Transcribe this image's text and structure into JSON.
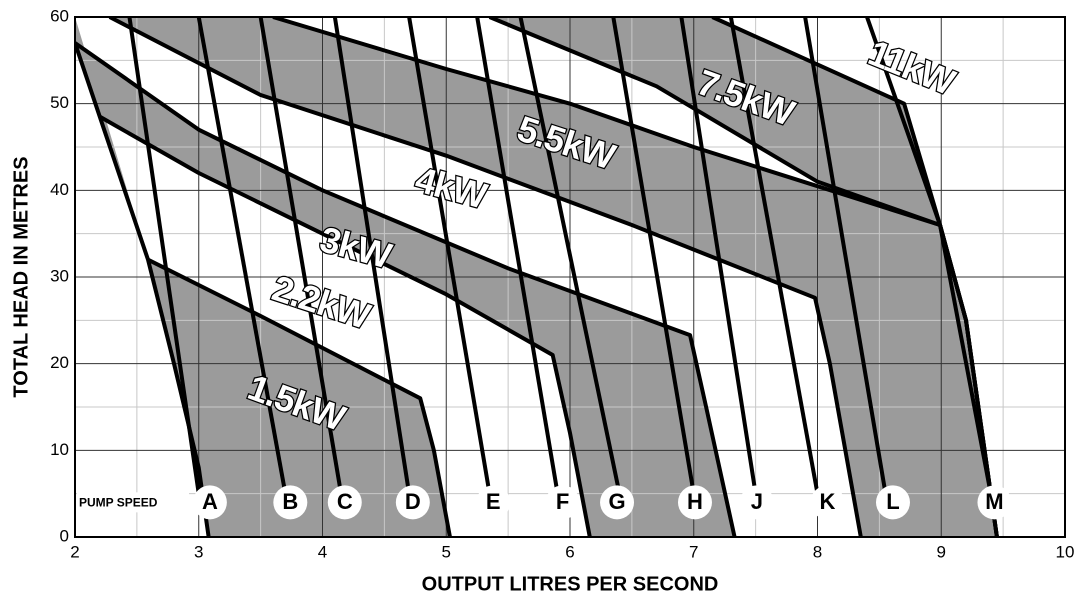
{
  "chart_data": {
    "type": "line",
    "xlabel": "OUTPUT LITRES PER SECOND",
    "ylabel": "TOTAL HEAD IN METRES",
    "annotation": "PUMP SPEED",
    "xlim": [
      2,
      10
    ],
    "ylim": [
      0,
      60
    ],
    "xticks": [
      2,
      3,
      4,
      5,
      6,
      7,
      8,
      9,
      10
    ],
    "yticks": [
      0,
      10,
      20,
      30,
      40,
      50,
      60
    ],
    "minor_xticks": [
      2.5,
      3.5,
      4.5,
      5.5,
      6.5,
      7.5,
      8.5,
      9.5
    ],
    "minor_yticks": [
      5,
      15,
      25,
      35,
      45,
      55
    ],
    "grid": true,
    "regions": [
      {
        "name": "11kW",
        "color": "#9b9b9b",
        "x": [
          7.15,
          8.7,
          8.99,
          9.2,
          9.45
        ],
        "y": [
          60,
          50,
          36,
          25,
          0
        ]
      },
      {
        "name": "7.5kW",
        "color": "#ffffff",
        "x": [
          5.35,
          6.7,
          8.0,
          8.99,
          9.2,
          9.45
        ],
        "y": [
          60,
          52,
          41,
          36,
          25,
          0
        ]
      },
      {
        "name": "5.5kW",
        "color": "#9b9b9b",
        "x": [
          3.6,
          5.0,
          6.0,
          7.0,
          8.99,
          9.2,
          9.45
        ],
        "y": [
          60,
          54,
          50,
          45,
          36,
          25,
          0
        ]
      },
      {
        "name": "4kW",
        "color": "#ffffff",
        "x": [
          2.28,
          3.5,
          5.0,
          6.5,
          7.98,
          8.1,
          8.35
        ],
        "y": [
          60,
          51,
          44,
          36,
          27.6,
          20,
          0
        ]
      },
      {
        "name": "3kW",
        "color": "#9b9b9b",
        "x": [
          2.0,
          3.0,
          4.0,
          5.5,
          6.97,
          7.1,
          7.33
        ],
        "y": [
          57,
          47,
          40,
          31,
          23.3,
          15,
          0
        ]
      },
      {
        "name": "2.2kW",
        "color": "#ffffff",
        "x": [
          2.2,
          3.0,
          4.0,
          5.0,
          5.86,
          6.0,
          6.16
        ],
        "y": [
          48.5,
          42,
          35,
          28,
          21,
          12,
          0
        ]
      },
      {
        "name": "1.5kW",
        "color": "#9b9b9b",
        "x": [
          2.59,
          3.5,
          4.79,
          4.9,
          5.03
        ],
        "y": [
          32,
          25.5,
          16,
          10,
          0
        ]
      }
    ],
    "boundary": {
      "x": [
        2.0,
        2.2,
        2.59,
        2.8,
        3.0,
        3.08
      ],
      "y": [
        57,
        48.5,
        32,
        20,
        8,
        0
      ]
    },
    "series": [
      {
        "name": "A",
        "color": "#000000",
        "x": [
          2.44,
          3.0
        ],
        "y": [
          60,
          5
        ]
      },
      {
        "name": "B",
        "color": "#000000",
        "x": [
          3.0,
          3.7
        ],
        "y": [
          60,
          5
        ]
      },
      {
        "name": "C",
        "color": "#000000",
        "x": [
          3.5,
          4.15
        ],
        "y": [
          60,
          5
        ]
      },
      {
        "name": "D",
        "color": "#000000",
        "x": [
          4.1,
          4.7
        ],
        "y": [
          60,
          5
        ]
      },
      {
        "name": "E",
        "color": "#000000",
        "x": [
          4.7,
          5.35
        ],
        "y": [
          60,
          5
        ]
      },
      {
        "name": "F",
        "color": "#000000",
        "x": [
          5.25,
          5.9
        ],
        "y": [
          60,
          5
        ]
      },
      {
        "name": "G",
        "color": "#000000",
        "x": [
          5.6,
          6.4
        ],
        "y": [
          60,
          5
        ]
      },
      {
        "name": "H",
        "color": "#000000",
        "x": [
          6.35,
          7.0
        ],
        "y": [
          60,
          5
        ]
      },
      {
        "name": "J",
        "color": "#000000",
        "x": [
          6.9,
          7.5
        ],
        "y": [
          60,
          5
        ]
      },
      {
        "name": "K",
        "color": "#000000",
        "x": [
          7.3,
          8.0
        ],
        "y": [
          60,
          5
        ]
      },
      {
        "name": "L",
        "color": "#000000",
        "x": [
          7.9,
          8.55
        ],
        "y": [
          60,
          5
        ]
      },
      {
        "name": "M",
        "color": "#000000",
        "x": [
          8.4,
          8.99,
          9.4
        ],
        "y": [
          60,
          36,
          5
        ]
      }
    ],
    "letter_x": [
      3.09,
      3.74,
      4.18,
      4.73,
      5.38,
      5.94,
      6.38,
      7.01,
      7.51,
      8.08,
      8.61,
      9.43
    ]
  }
}
